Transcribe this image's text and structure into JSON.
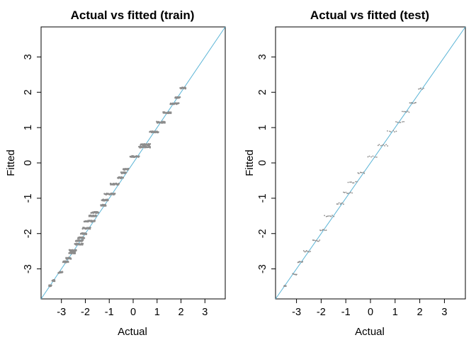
{
  "chart_data": [
    {
      "type": "scatter",
      "title": "Actual vs fitted (train)",
      "xlabel": "Actual",
      "ylabel": "Fitted",
      "xlim": [
        -3.85,
        3.85
      ],
      "ylim": [
        -3.85,
        3.85
      ],
      "xticks": [
        -3,
        -2,
        -1,
        0,
        1,
        2,
        3
      ],
      "yticks": [
        -3,
        -2,
        -1,
        0,
        1,
        2,
        3
      ],
      "grid": false,
      "reference_line": {
        "slope": 1,
        "intercept": 0,
        "color": "#5ab4d6"
      },
      "point_color": "#8c8c8c",
      "series": [
        {
          "clusters": [
            {
              "y": -3.48,
              "x": [
                -3.52,
                -3.43
              ],
              "n": 14
            },
            {
              "y": -3.33,
              "x": [
                -3.38,
                -3.28
              ],
              "n": 16
            },
            {
              "y": -3.1,
              "x": [
                -3.12,
                -2.95
              ],
              "n": 22
            },
            {
              "y": -2.8,
              "x": [
                -2.92,
                -2.72
              ],
              "n": 24
            },
            {
              "y": -2.7,
              "x": [
                -2.8,
                -2.6
              ],
              "n": 22
            },
            {
              "y": -2.55,
              "x": [
                -2.68,
                -2.42
              ],
              "n": 26
            },
            {
              "y": -2.48,
              "x": [
                -2.66,
                -2.38
              ],
              "n": 26
            },
            {
              "y": -2.3,
              "x": [
                -2.45,
                -2.1
              ],
              "n": 28
            },
            {
              "y": -2.2,
              "x": [
                -2.4,
                -2.1
              ],
              "n": 26
            },
            {
              "y": -2.12,
              "x": [
                -2.3,
                -2.05
              ],
              "n": 24
            },
            {
              "y": -2.0,
              "x": [
                -2.2,
                -1.95
              ],
              "n": 24
            },
            {
              "y": -1.85,
              "x": [
                -2.1,
                -1.8
              ],
              "n": 26
            },
            {
              "y": -1.65,
              "x": [
                -2.05,
                -1.6
              ],
              "n": 30
            },
            {
              "y": -1.5,
              "x": [
                -1.85,
                -1.55
              ],
              "n": 26
            },
            {
              "y": -1.4,
              "x": [
                -1.75,
                -1.45
              ],
              "n": 26
            },
            {
              "y": -1.2,
              "x": [
                -1.35,
                -1.15
              ],
              "n": 22
            },
            {
              "y": -1.05,
              "x": [
                -1.3,
                -1.05
              ],
              "n": 22
            },
            {
              "y": -0.88,
              "x": [
                -1.2,
                -0.75
              ],
              "n": 30
            },
            {
              "y": -0.6,
              "x": [
                -0.95,
                -0.6
              ],
              "n": 26
            },
            {
              "y": -0.42,
              "x": [
                -0.65,
                -0.42
              ],
              "n": 22
            },
            {
              "y": -0.28,
              "x": [
                -0.5,
                -0.3
              ],
              "n": 22
            },
            {
              "y": -0.18,
              "x": [
                -0.42,
                -0.18
              ],
              "n": 20
            },
            {
              "y": 0.18,
              "x": [
                -0.12,
                0.25
              ],
              "n": 22
            },
            {
              "y": 0.45,
              "x": [
                0.25,
                0.72
              ],
              "n": 30
            },
            {
              "y": 0.52,
              "x": [
                0.32,
                0.7
              ],
              "n": 28
            },
            {
              "y": 0.88,
              "x": [
                0.7,
                1.05
              ],
              "n": 24
            },
            {
              "y": 1.15,
              "x": [
                1.0,
                1.32
              ],
              "n": 24
            },
            {
              "y": 1.42,
              "x": [
                1.25,
                1.58
              ],
              "n": 24
            },
            {
              "y": 1.68,
              "x": [
                1.55,
                1.9
              ],
              "n": 24
            },
            {
              "y": 1.85,
              "x": [
                1.75,
                1.95
              ],
              "n": 18
            },
            {
              "y": 2.12,
              "x": [
                1.98,
                2.2
              ],
              "n": 18
            }
          ]
        }
      ]
    },
    {
      "type": "scatter",
      "title": "Actual vs fitted (test)",
      "xlabel": "Actual",
      "ylabel": "Fitted",
      "xlim": [
        -3.85,
        3.85
      ],
      "ylim": [
        -3.85,
        3.85
      ],
      "xticks": [
        -3,
        -2,
        -1,
        0,
        1,
        2,
        3
      ],
      "yticks": [
        -3,
        -2,
        -1,
        0,
        1,
        2,
        3
      ],
      "grid": false,
      "reference_line": {
        "slope": 1,
        "intercept": 0,
        "color": "#5ab4d6"
      },
      "point_color": "#8c8c8c",
      "series": [
        {
          "clusters": [
            {
              "y": -3.48,
              "x": [
                -3.5,
                -3.42
              ],
              "n": 5
            },
            {
              "y": -3.15,
              "x": [
                -3.15,
                -3.0
              ],
              "n": 6
            },
            {
              "y": -2.8,
              "x": [
                -2.95,
                -2.75
              ],
              "n": 8
            },
            {
              "y": -2.5,
              "x": [
                -2.7,
                -2.45
              ],
              "n": 8
            },
            {
              "y": -2.2,
              "x": [
                -2.35,
                -2.05
              ],
              "n": 8
            },
            {
              "y": -1.9,
              "x": [
                -2.05,
                -1.8
              ],
              "n": 7
            },
            {
              "y": -1.5,
              "x": [
                -1.85,
                -1.5
              ],
              "n": 8
            },
            {
              "y": -1.15,
              "x": [
                -1.35,
                -1.1
              ],
              "n": 7
            },
            {
              "y": -0.85,
              "x": [
                -1.1,
                -0.75
              ],
              "n": 8
            },
            {
              "y": -0.55,
              "x": [
                -0.9,
                -0.55
              ],
              "n": 7
            },
            {
              "y": -0.28,
              "x": [
                -0.5,
                -0.25
              ],
              "n": 7
            },
            {
              "y": 0.18,
              "x": [
                -0.1,
                0.25
              ],
              "n": 6
            },
            {
              "y": 0.5,
              "x": [
                0.3,
                0.7
              ],
              "n": 8
            },
            {
              "y": 0.9,
              "x": [
                0.7,
                1.05
              ],
              "n": 6
            },
            {
              "y": 1.15,
              "x": [
                1.05,
                1.35
              ],
              "n": 6
            },
            {
              "y": 1.45,
              "x": [
                1.3,
                1.55
              ],
              "n": 6
            },
            {
              "y": 1.7,
              "x": [
                1.6,
                1.85
              ],
              "n": 7
            },
            {
              "y": 2.1,
              "x": [
                1.95,
                2.15
              ],
              "n": 5
            }
          ]
        }
      ]
    }
  ]
}
